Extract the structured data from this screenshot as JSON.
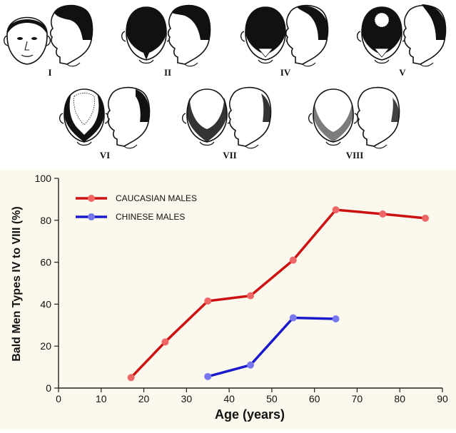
{
  "stages": [
    {
      "numeral": "I"
    },
    {
      "numeral": "II"
    },
    {
      "numeral": "IV"
    },
    {
      "numeral": "V"
    },
    {
      "numeral": "VI"
    },
    {
      "numeral": "VII"
    },
    {
      "numeral": "VIII"
    }
  ],
  "chart_data": {
    "type": "line",
    "title": "",
    "xlabel": "Age (years)",
    "ylabel": "Bald Men Types IV to VIII (%)",
    "xlim": [
      0,
      90
    ],
    "ylim": [
      0,
      100
    ],
    "xticks": [
      0,
      10,
      20,
      30,
      40,
      50,
      60,
      70,
      80,
      90
    ],
    "yticks": [
      0,
      20,
      40,
      60,
      80,
      100
    ],
    "grid": false,
    "legend_position": "top-left",
    "series": [
      {
        "name": "CAUCASIAN MALES",
        "color": "#cc1111",
        "marker_color": "#ee6666",
        "points": [
          {
            "x": 17,
            "y": 5
          },
          {
            "x": 25,
            "y": 22
          },
          {
            "x": 35,
            "y": 41.5
          },
          {
            "x": 45,
            "y": 44
          },
          {
            "x": 55,
            "y": 61
          },
          {
            "x": 65,
            "y": 85
          },
          {
            "x": 76,
            "y": 83
          },
          {
            "x": 86,
            "y": 81
          }
        ]
      },
      {
        "name": "CHINESE MALES",
        "color": "#1a1acc",
        "marker_color": "#7777ee",
        "points": [
          {
            "x": 35,
            "y": 5.5
          },
          {
            "x": 45,
            "y": 11
          },
          {
            "x": 55,
            "y": 33.5
          },
          {
            "x": 65,
            "y": 33
          }
        ]
      }
    ]
  }
}
